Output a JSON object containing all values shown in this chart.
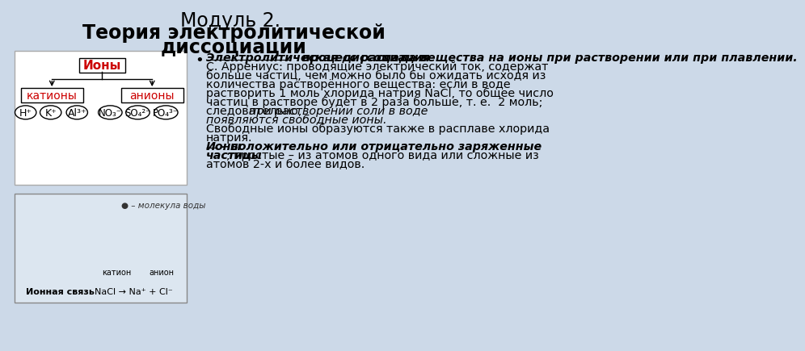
{
  "bg_color": "#ccd9e8",
  "title_line1": "Модуль 2. Теория электролитической",
  "title_line2": "диссоциации",
  "diagram_root": "Ионы",
  "diagram_left": "катионы",
  "diagram_right": "анионы",
  "cations": [
    "H⁺",
    "K⁺",
    "Al³⁺"
  ],
  "anions": [
    "NO₃⁻",
    "SO₄²⁻",
    "PO₄³⁻"
  ],
  "body_lines": [
    {
      "text": "Электролитическая диссоциация",
      "bold": true,
      "italic": true,
      "underline": true
    },
    {
      "text": " - процесс распада вещества на ионы при растворении или при плавлении.",
      "bold": true,
      "italic": true,
      "underline": false
    },
    {
      "text": "\nС. Аррениус: проводящие электрический ток, содержат",
      "bold": false,
      "italic": false,
      "underline": false
    },
    {
      "text": "\nбольше частиц, чем можно было бы ожидать исходя из",
      "bold": false,
      "italic": false,
      "underline": false
    },
    {
      "text": "\nколичества растворённого вещества: если в воде",
      "bold": false,
      "italic": false,
      "underline": false
    },
    {
      "text": "\nрастворить 1 моль хлорида натрия NaCl, то общее число",
      "bold": false,
      "italic": false,
      "underline": false
    },
    {
      "text": "\nчастиц в растворе будет в 2 раза больше, т. е.  2 моль;",
      "bold": false,
      "italic": false,
      "underline": false
    },
    {
      "text": "\nследовательно, ",
      "bold": false,
      "italic": false,
      "underline": false
    },
    {
      "text": "при растворении соли в воде",
      "bold": false,
      "italic": true,
      "underline": false
    },
    {
      "text": "\nпоявляются свободные ионы.",
      "bold": false,
      "italic": true,
      "underline": false
    },
    {
      "text": "\nСвободные ионы образуются также в расплаве хлорида",
      "bold": false,
      "italic": false,
      "underline": false
    },
    {
      "text": "\nнатрия.",
      "bold": false,
      "italic": false,
      "underline": false
    },
    {
      "text": "\n",
      "bold": false,
      "italic": false,
      "underline": false
    },
    {
      "text": "Ионы",
      "bold": true,
      "italic": true,
      "underline": true
    },
    {
      "text": " - положительно или отрицательно заряженные",
      "bold": true,
      "italic": true,
      "underline": false
    },
    {
      "text": "\nчастицы",
      "bold": true,
      "italic": true,
      "underline": false
    },
    {
      "text": "; простые – из атомов одного вида или сложные из",
      "bold": false,
      "italic": false,
      "underline": false
    },
    {
      "text": "\nатомов 2-х и более видов.",
      "bold": false,
      "italic": false,
      "underline": false
    }
  ]
}
